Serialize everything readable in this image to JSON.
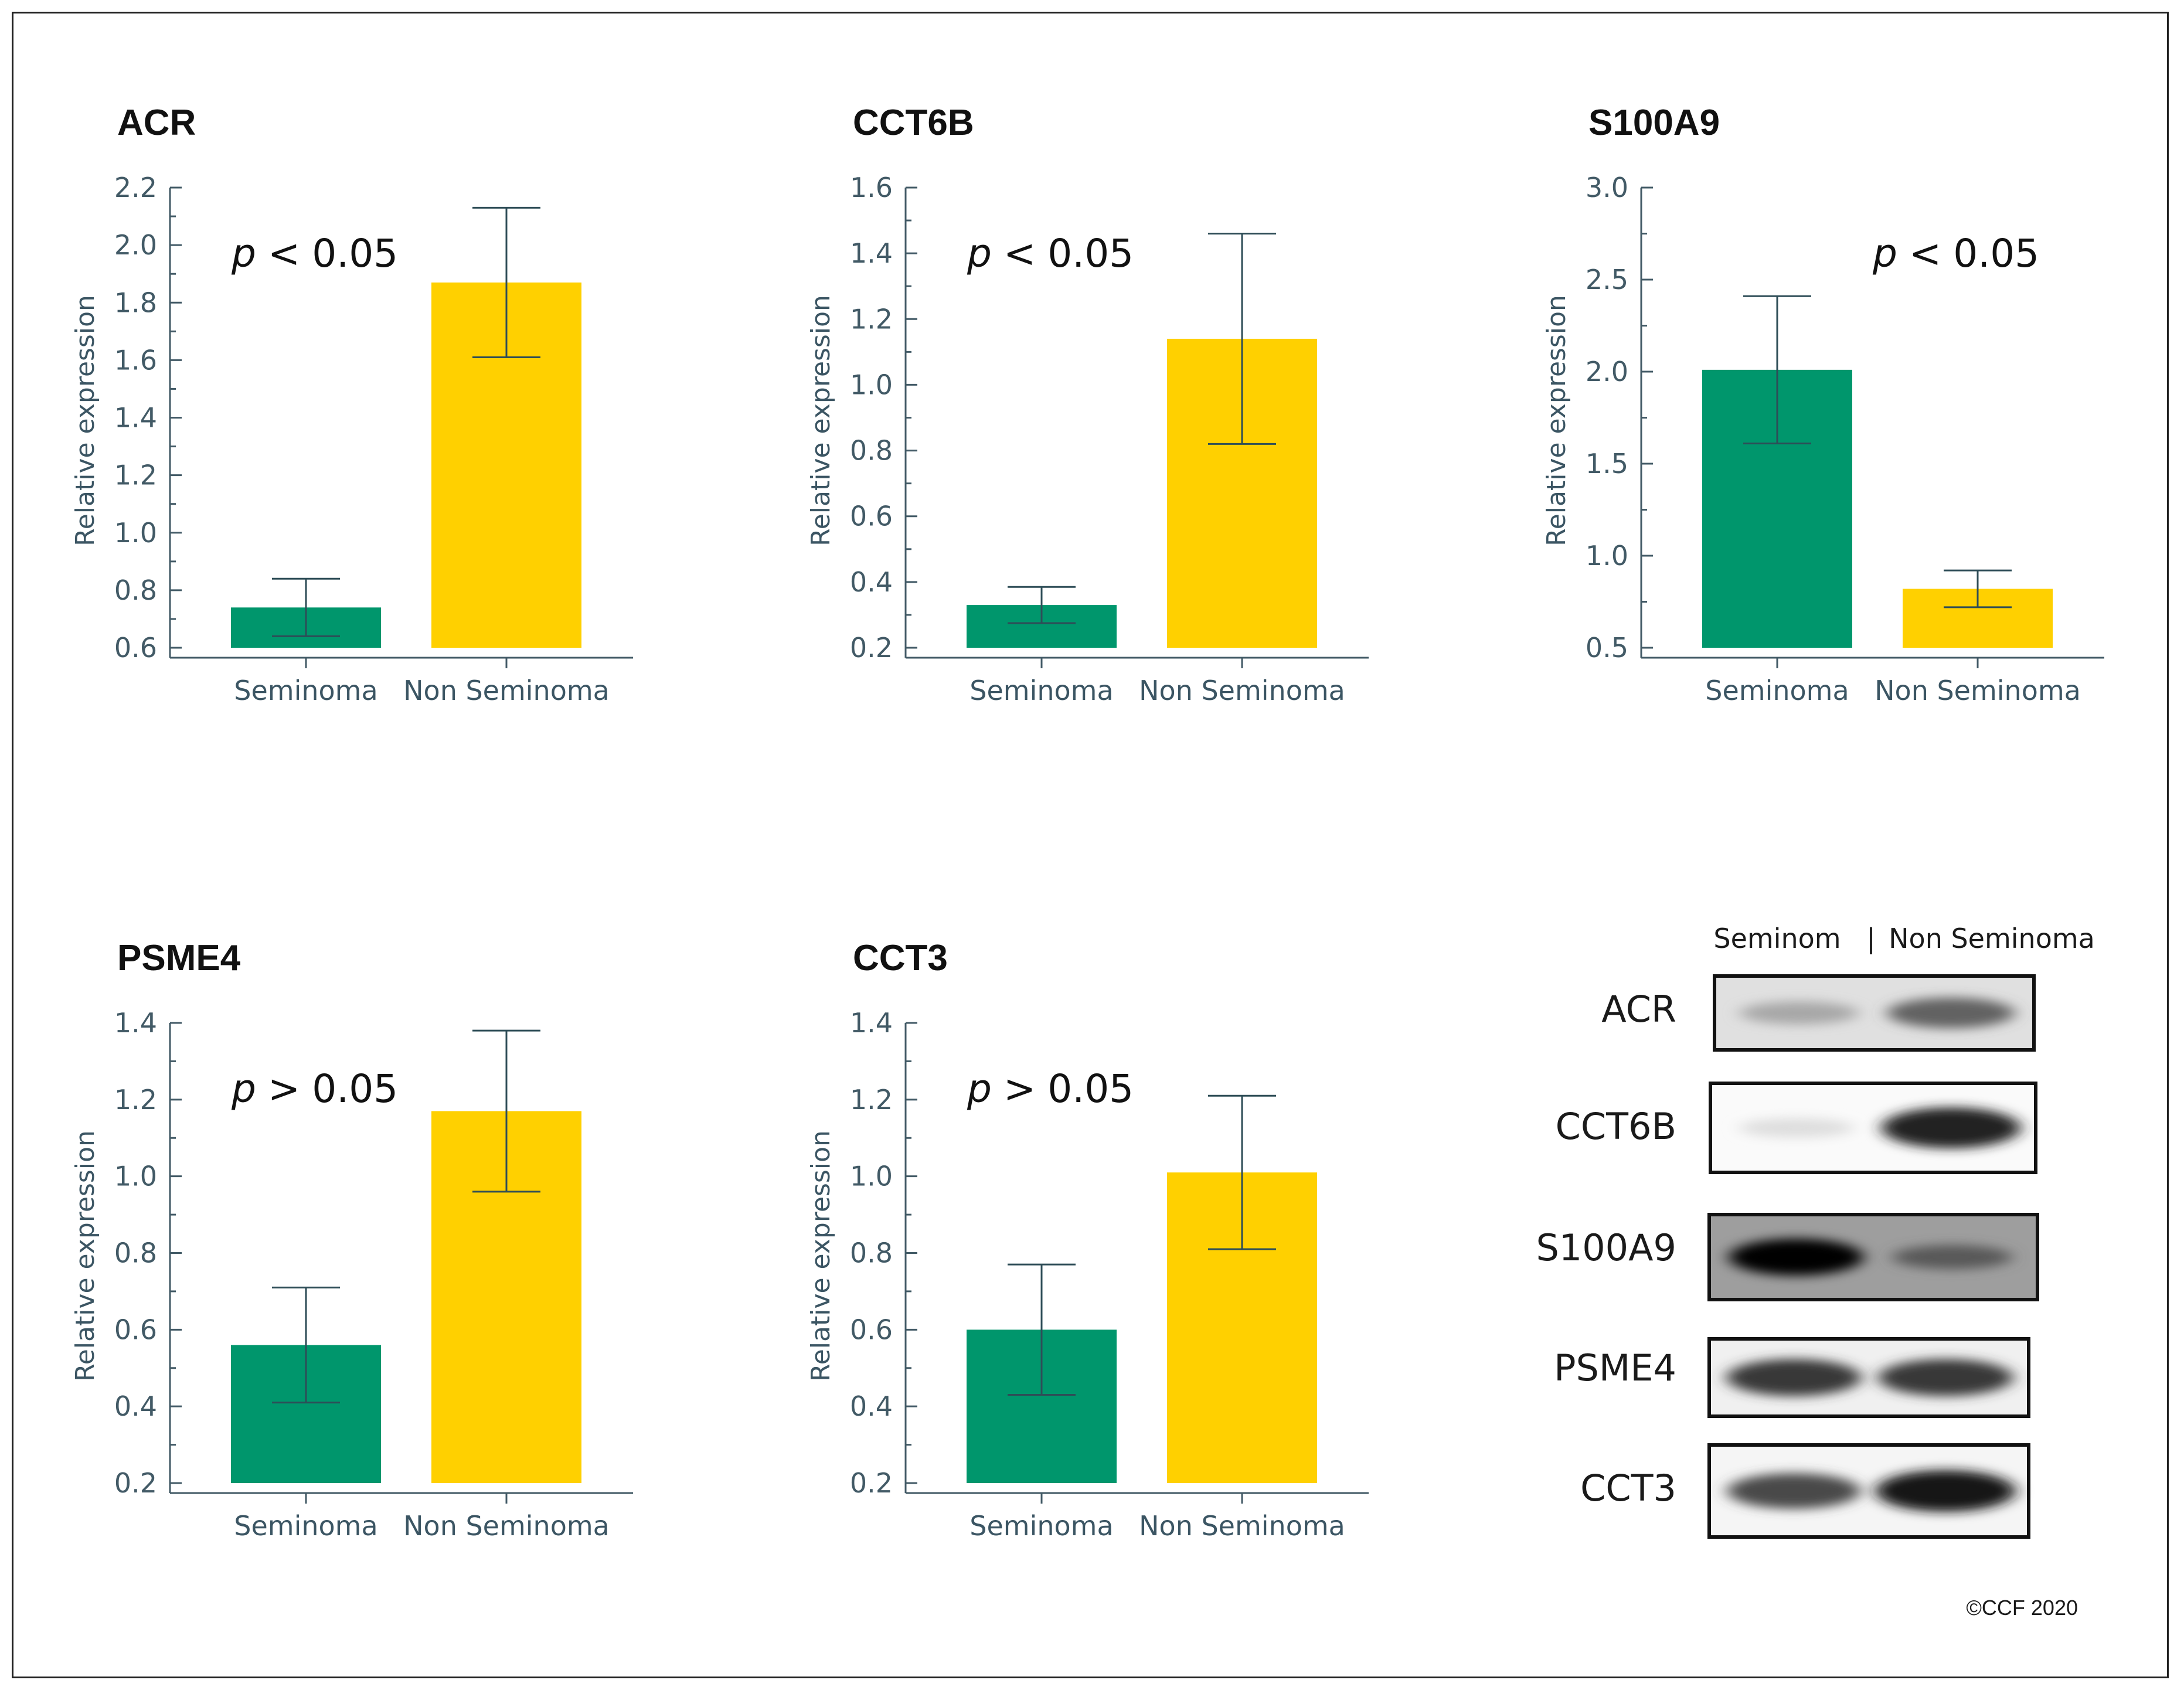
{
  "colors": {
    "seminoma": "#00966c",
    "non_seminoma": "#ffd000",
    "axis": "#425a66",
    "error": "#2e4d57"
  },
  "chart_data": [
    {
      "type": "bar",
      "title": "ACR",
      "ylabel": "Relative expression",
      "categories": [
        "Seminoma",
        "Non Seminoma"
      ],
      "values": [
        0.74,
        1.87
      ],
      "errors": [
        0.1,
        0.26
      ],
      "ylim": [
        0.6,
        2.2
      ],
      "yticks": [
        "0.6",
        "0.8",
        "1.0",
        "1.2",
        "1.4",
        "1.6",
        "1.8",
        "2.0",
        "2.2"
      ],
      "annotation": {
        "symbol": "p",
        "relation": "<",
        "value": "0.05"
      },
      "annotation_side": "left"
    },
    {
      "type": "bar",
      "title": "CCT6B",
      "ylabel": "Relative expression",
      "categories": [
        "Seminoma",
        "Non Seminoma"
      ],
      "values": [
        0.33,
        1.14
      ],
      "errors": [
        0.055,
        0.32
      ],
      "ylim": [
        0.2,
        1.6
      ],
      "yticks": [
        "0.2",
        "0.4",
        "0.6",
        "0.8",
        "1.0",
        "1.2",
        "1.4",
        "1.6"
      ],
      "annotation": {
        "symbol": "p",
        "relation": "<",
        "value": "0.05"
      },
      "annotation_side": "left"
    },
    {
      "type": "bar",
      "title": "S100A9",
      "ylabel": "Relative expression",
      "categories": [
        "Seminoma",
        "Non Seminoma"
      ],
      "values": [
        2.01,
        0.82
      ],
      "errors": [
        0.4,
        0.1
      ],
      "ylim": [
        0.5,
        3.0
      ],
      "yticks": [
        "0.5",
        "1.0",
        "1.5",
        "2.0",
        "2.5",
        "3.0"
      ],
      "annotation": {
        "symbol": "p",
        "relation": "<",
        "value": "0.05"
      },
      "annotation_side": "right"
    },
    {
      "type": "bar",
      "title": "PSME4",
      "ylabel": "Relative expression",
      "categories": [
        "Seminoma",
        "Non Seminoma"
      ],
      "values": [
        0.56,
        1.17
      ],
      "errors": [
        0.15,
        0.21
      ],
      "ylim": [
        0.2,
        1.4
      ],
      "yticks": [
        "0.2",
        "0.4",
        "0.6",
        "0.8",
        "1.0",
        "1.2",
        "1.4"
      ],
      "annotation": {
        "symbol": "p",
        "relation": ">",
        "value": "0.05"
      },
      "annotation_side": "left"
    },
    {
      "type": "bar",
      "title": "CCT3",
      "ylabel": "Relative expression",
      "categories": [
        "Seminoma",
        "Non Seminoma"
      ],
      "values": [
        0.6,
        1.01
      ],
      "errors": [
        0.17,
        0.2
      ],
      "ylim": [
        0.2,
        1.4
      ],
      "yticks": [
        "0.2",
        "0.4",
        "0.6",
        "0.8",
        "1.0",
        "1.2",
        "1.4"
      ],
      "annotation": {
        "symbol": "p",
        "relation": ">",
        "value": "0.05"
      },
      "annotation_side": "left"
    }
  ],
  "western_blot": {
    "headers": {
      "left": "Seminom",
      "separator": "|",
      "right": "Non Seminoma"
    },
    "rows": [
      {
        "label": "ACR",
        "seminoma_intensity": 0.25,
        "non_seminoma_intensity": 0.55,
        "background": 0.12
      },
      {
        "label": "CCT6B",
        "seminoma_intensity": 0.12,
        "non_seminoma_intensity": 0.95,
        "background": 0.02
      },
      {
        "label": "S100A9",
        "seminoma_intensity": 0.8,
        "non_seminoma_intensity": 0.3,
        "background": 0.38
      },
      {
        "label": "PSME4",
        "seminoma_intensity": 0.8,
        "non_seminoma_intensity": 0.8,
        "background": 0.06
      },
      {
        "label": "CCT3",
        "seminoma_intensity": 0.75,
        "non_seminoma_intensity": 0.98,
        "background": 0.04
      }
    ]
  },
  "copyright": "©CCF 2020"
}
